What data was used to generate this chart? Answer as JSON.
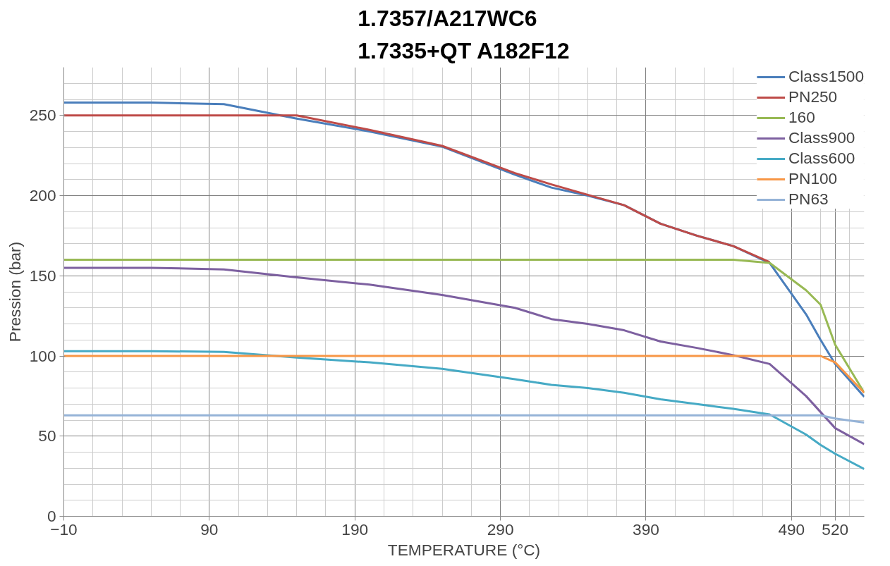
{
  "chart_data": {
    "type": "line",
    "title": "1.7357/A217WC6\n1.7335+QT A182F12",
    "xlabel": "TEMPERATURE (°C)",
    "ylabel": "Pression (bar)",
    "x": [
      -10,
      50,
      100,
      150,
      200,
      250,
      300,
      325,
      350,
      375,
      400,
      425,
      450,
      475,
      500,
      510,
      520,
      540
    ],
    "series": [
      {
        "name": "Class1500",
        "color": "#4a7ebb",
        "values": [
          258,
          258,
          257,
          248,
          240,
          230.5,
          213,
          205,
          200,
          194,
          182.5,
          175,
          168.5,
          158,
          126,
          110,
          95,
          74.5
        ]
      },
      {
        "name": "PN250",
        "color": "#be4b48",
        "values": [
          250,
          250,
          250,
          250,
          241,
          231,
          214,
          207,
          200.5,
          194,
          182.5,
          175,
          168.5,
          158.5,
          null,
          null,
          null,
          null
        ]
      },
      {
        "name": "160",
        "color": "#98b954",
        "values": [
          160,
          160,
          160,
          160,
          160,
          160,
          160,
          160,
          160,
          160,
          160,
          160,
          160,
          158,
          141,
          132,
          107,
          77
        ]
      },
      {
        "name": "Class900",
        "color": "#7d60a0",
        "values": [
          155,
          155,
          154,
          149,
          144.5,
          138,
          130,
          123,
          120,
          116,
          109,
          105,
          100.5,
          95,
          75,
          65,
          55,
          45
        ]
      },
      {
        "name": "Class600",
        "color": "#46aac5",
        "values": [
          103,
          103,
          102.5,
          99,
          96,
          92,
          85.5,
          82,
          80,
          77,
          73,
          70,
          67,
          63.5,
          51,
          44.5,
          39,
          29.5
        ]
      },
      {
        "name": "PN100",
        "color": "#f79646",
        "values": [
          100,
          100,
          100,
          100,
          100,
          100,
          100,
          100,
          100,
          100,
          100,
          100,
          100,
          100,
          100,
          100,
          96,
          77
        ]
      },
      {
        "name": "PN63",
        "color": "#95b3d7",
        "values": [
          63,
          63,
          63,
          63,
          63,
          63,
          63,
          63,
          63,
          63,
          63,
          63,
          63,
          63,
          63,
          63,
          61,
          58.5
        ]
      }
    ],
    "xlim": [
      -10,
      540
    ],
    "xticks": [
      -10,
      90,
      190,
      290,
      390,
      490,
      520
    ],
    "ylim": [
      0,
      280
    ],
    "yticks": [
      0,
      50,
      100,
      150,
      200,
      250
    ],
    "grid": true,
    "legend": "top right",
    "marker": "none",
    "line_style": "solid"
  }
}
